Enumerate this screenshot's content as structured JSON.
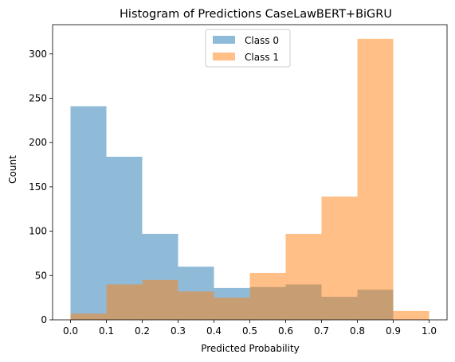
{
  "chart_data": {
    "type": "bar",
    "title": "Histogram of Predictions CaseLawBERT+BiGRU",
    "xlabel": "Predicted Probability",
    "ylabel": "Count",
    "bin_edges": [
      0.0,
      0.1,
      0.2,
      0.3,
      0.4,
      0.5,
      0.6,
      0.7,
      0.8,
      0.9,
      1.0
    ],
    "xlim": [
      -0.05,
      1.05
    ],
    "ylim": [
      0,
      333
    ],
    "x_ticks": [
      "0.0",
      "0.1",
      "0.2",
      "0.3",
      "0.4",
      "0.5",
      "0.6",
      "0.7",
      "0.8",
      "0.9",
      "1.0"
    ],
    "y_ticks": [
      "0",
      "50",
      "100",
      "150",
      "200",
      "250",
      "300"
    ],
    "grid": false,
    "legend_position": "top-center",
    "series": [
      {
        "name": "Class 0",
        "color": "#1f77b4",
        "alpha": 0.5,
        "values": [
          241,
          184,
          97,
          60,
          36,
          37,
          40,
          26,
          34,
          0
        ]
      },
      {
        "name": "Class 1",
        "color": "#ff7f0e",
        "alpha": 0.5,
        "values": [
          7,
          40,
          45,
          32,
          25,
          53,
          97,
          139,
          317,
          10
        ]
      }
    ]
  }
}
